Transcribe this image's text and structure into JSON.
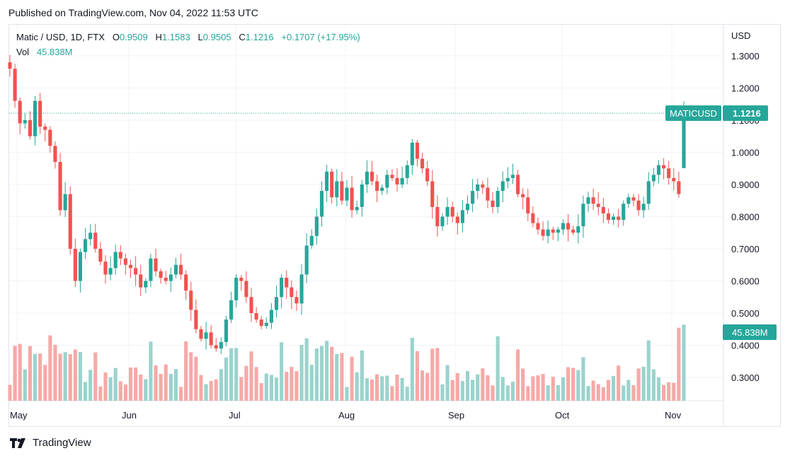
{
  "published": "Published on TradingView.com, Nov 04, 2022 11:53 UTC",
  "legend": {
    "symbol": "Matic / USD, 1D, FTX",
    "open_label": "O",
    "open": "0.9509",
    "high_label": "H",
    "high": "1.1583",
    "low_label": "L",
    "low": "0.9505",
    "close_label": "C",
    "close": "1.1216",
    "change": "+0.1707 (+17.95%)",
    "vol_label": "Vol",
    "vol": "45.838M"
  },
  "price_axis": {
    "currency": "USD",
    "ticks": [
      "1.3000",
      "1.2000",
      "1.1000",
      "1.0000",
      "0.9000",
      "0.8000",
      "0.7000",
      "0.6000",
      "0.5000",
      "0.4000",
      "0.3000"
    ]
  },
  "time_axis": {
    "labels": [
      "May",
      "Jun",
      "Jul",
      "Aug",
      "Sep",
      "Oct",
      "Nov"
    ]
  },
  "last_price_tag": {
    "symbol": "MATICUSD",
    "value": "1.1216"
  },
  "volume_tag": {
    "value": "45.838M"
  },
  "brand": "TradingView",
  "colors": {
    "up": "#26a69a",
    "down": "#ef5350",
    "vol_up": "#9ad3cd",
    "vol_down": "#f6a9a7",
    "grid": "#f0f3fa"
  },
  "chart_data": {
    "type": "candlestick",
    "ylabel": "USD",
    "ylim": [
      0.22,
      1.34
    ],
    "x_months": [
      "May",
      "Jun",
      "Jul",
      "Aug",
      "Sep",
      "Oct",
      "Nov"
    ],
    "close_series": [
      1.26,
      1.16,
      1.09,
      1.1,
      1.05,
      1.16,
      1.08,
      1.07,
      1.02,
      0.97,
      0.82,
      0.87,
      0.7,
      0.6,
      0.69,
      0.73,
      0.75,
      0.7,
      0.66,
      0.62,
      0.64,
      0.69,
      0.67,
      0.65,
      0.64,
      0.62,
      0.58,
      0.6,
      0.67,
      0.63,
      0.61,
      0.6,
      0.62,
      0.65,
      0.62,
      0.57,
      0.51,
      0.45,
      0.42,
      0.44,
      0.4,
      0.39,
      0.41,
      0.48,
      0.54,
      0.61,
      0.6,
      0.55,
      0.5,
      0.48,
      0.46,
      0.47,
      0.51,
      0.55,
      0.61,
      0.58,
      0.55,
      0.53,
      0.62,
      0.71,
      0.74,
      0.8,
      0.88,
      0.94,
      0.86,
      0.91,
      0.85,
      0.89,
      0.82,
      0.83,
      0.9,
      0.94,
      0.91,
      0.88,
      0.89,
      0.93,
      0.92,
      0.9,
      0.92,
      0.96,
      1.03,
      0.98,
      0.95,
      0.91,
      0.83,
      0.77,
      0.8,
      0.83,
      0.8,
      0.78,
      0.82,
      0.84,
      0.88,
      0.9,
      0.89,
      0.85,
      0.83,
      0.88,
      0.91,
      0.92,
      0.93,
      0.87,
      0.86,
      0.81,
      0.78,
      0.76,
      0.74,
      0.76,
      0.75,
      0.76,
      0.78,
      0.76,
      0.75,
      0.77,
      0.84,
      0.86,
      0.84,
      0.83,
      0.81,
      0.79,
      0.8,
      0.79,
      0.84,
      0.86,
      0.85,
      0.82,
      0.84,
      0.91,
      0.93,
      0.96,
      0.95,
      0.92,
      0.91,
      0.87,
      1.12
    ],
    "volume_max": 46,
    "last_volume": 45.838
  }
}
